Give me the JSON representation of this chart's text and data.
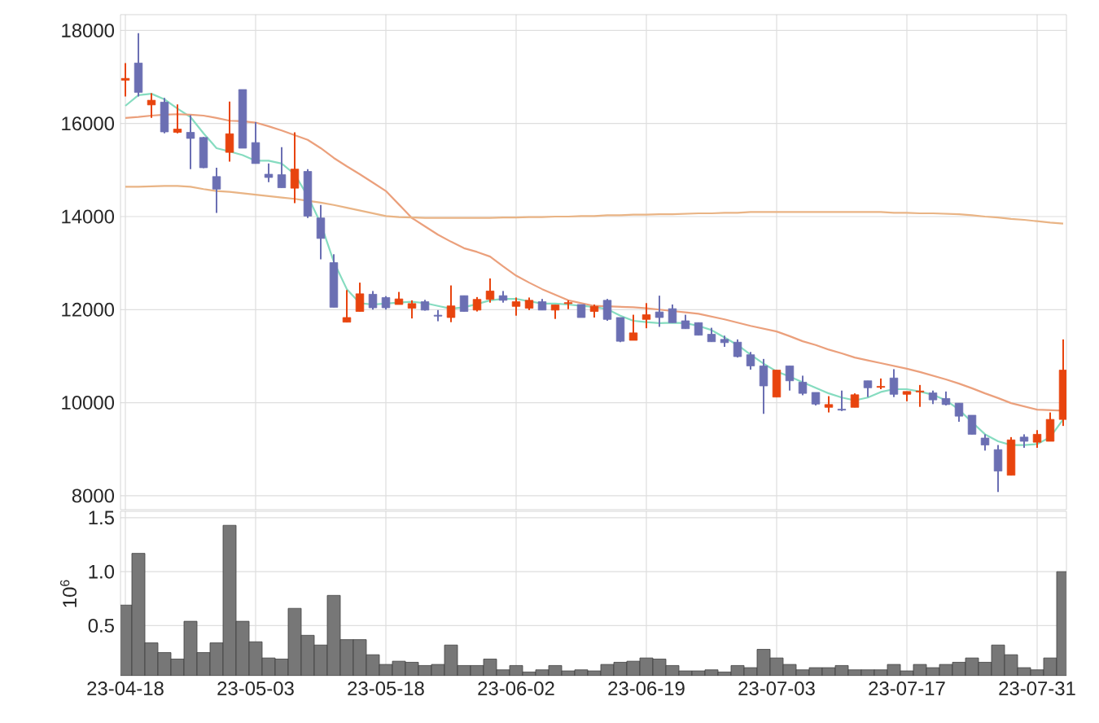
{
  "chart_data": [
    {
      "type": "candlestick",
      "categories": [
        null,
        null,
        null,
        null,
        null,
        null,
        null,
        null,
        null,
        null,
        null,
        null,
        null,
        null,
        null,
        null,
        null,
        null,
        null,
        null,
        null,
        null,
        null,
        null,
        null,
        null,
        null,
        null,
        null,
        null,
        null,
        null,
        null,
        null,
        null,
        null,
        null,
        null,
        null,
        null,
        null,
        null,
        null,
        null,
        null,
        null,
        null,
        null,
        null,
        null,
        null,
        null,
        null,
        null,
        null,
        null,
        null,
        null,
        null,
        null,
        null,
        null,
        null,
        null,
        null,
        null,
        null,
        null,
        null,
        null,
        null,
        null,
        null
      ],
      "ohlc": [
        [
          16930,
          17300,
          16580,
          16970
        ],
        [
          17300,
          17940,
          16580,
          16670
        ],
        [
          16400,
          16650,
          16120,
          16500
        ],
        [
          16460,
          16550,
          15790,
          15820
        ],
        [
          15810,
          16410,
          15790,
          15880
        ],
        [
          15810,
          16180,
          15020,
          15680
        ],
        [
          15700,
          15710,
          15040,
          15050
        ],
        [
          14860,
          15050,
          14080,
          14590
        ],
        [
          15380,
          16470,
          15180,
          15780
        ],
        [
          16730,
          16730,
          15470,
          15470
        ],
        [
          15590,
          16030,
          15140,
          15140
        ],
        [
          14910,
          15140,
          14740,
          14840
        ],
        [
          14900,
          15490,
          14620,
          14620
        ],
        [
          14610,
          15810,
          14290,
          15020
        ],
        [
          14970,
          15020,
          13970,
          14010
        ],
        [
          13970,
          14250,
          13080,
          13530
        ],
        [
          13010,
          13190,
          12050,
          12050
        ],
        [
          11730,
          12420,
          11730,
          11830
        ],
        [
          11960,
          12580,
          11960,
          12340
        ],
        [
          12330,
          12400,
          12000,
          12040
        ],
        [
          12260,
          12290,
          12000,
          12040
        ],
        [
          12110,
          12380,
          12110,
          12230
        ],
        [
          12030,
          12200,
          11810,
          12130
        ],
        [
          12170,
          12210,
          11980,
          11990
        ],
        [
          11880,
          11990,
          11750,
          11860
        ],
        [
          11830,
          12520,
          11730,
          12080
        ],
        [
          12300,
          12300,
          11960,
          11960
        ],
        [
          11990,
          12270,
          11960,
          12220
        ],
        [
          12220,
          12670,
          12150,
          12400
        ],
        [
          12300,
          12400,
          12150,
          12200
        ],
        [
          12070,
          12260,
          11870,
          12170
        ],
        [
          12030,
          12260,
          11990,
          12200
        ],
        [
          12170,
          12230,
          11990,
          11990
        ],
        [
          11990,
          12100,
          11800,
          12100
        ],
        [
          12130,
          12200,
          12010,
          12150
        ],
        [
          12110,
          12110,
          11830,
          11830
        ],
        [
          11960,
          12110,
          11830,
          12070
        ],
        [
          12200,
          12230,
          11760,
          11790
        ],
        [
          11830,
          11830,
          11300,
          11320
        ],
        [
          11340,
          11890,
          11340,
          11500
        ],
        [
          11790,
          12140,
          11600,
          11890
        ],
        [
          11950,
          12300,
          11630,
          11830
        ],
        [
          12020,
          12110,
          11720,
          11720
        ],
        [
          11760,
          11890,
          11590,
          11590
        ],
        [
          11720,
          11720,
          11450,
          11450
        ],
        [
          11470,
          11610,
          11310,
          11310
        ],
        [
          11360,
          11440,
          11200,
          11290
        ],
        [
          11300,
          11360,
          10970,
          10990
        ],
        [
          11030,
          11090,
          10710,
          10790
        ],
        [
          10790,
          10940,
          9760,
          10360
        ],
        [
          10120,
          10700,
          10120,
          10700
        ],
        [
          10790,
          10790,
          10260,
          10470
        ],
        [
          10440,
          10580,
          10160,
          10200
        ],
        [
          10220,
          10220,
          9940,
          9970
        ],
        [
          9900,
          10140,
          9790,
          9960
        ],
        [
          9860,
          10260,
          9820,
          9840
        ],
        [
          9900,
          10200,
          9900,
          10170
        ],
        [
          10470,
          10470,
          10120,
          10320
        ],
        [
          10330,
          10520,
          10290,
          10350
        ],
        [
          10530,
          10720,
          10120,
          10180
        ],
        [
          10180,
          10240,
          10030,
          10240
        ],
        [
          10230,
          10380,
          9910,
          10250
        ],
        [
          10210,
          10260,
          9970,
          10060
        ],
        [
          10090,
          10240,
          9940,
          9960
        ],
        [
          9990,
          9990,
          9590,
          9710
        ],
        [
          9730,
          9730,
          9320,
          9320
        ],
        [
          9240,
          9320,
          8970,
          9090
        ],
        [
          8990,
          9090,
          8080,
          8530
        ],
        [
          8440,
          9260,
          8440,
          9200
        ],
        [
          9260,
          9320,
          9030,
          9170
        ],
        [
          9150,
          9410,
          9030,
          9320
        ],
        [
          9170,
          9790,
          9170,
          9640
        ],
        [
          9640,
          11360,
          9500,
          10700
        ]
      ],
      "colors": [
        "#e8440e",
        "#6b6fb3",
        "#e8440e",
        "#6b6fb3",
        "#e8440e",
        "#6b6fb3",
        "#6b6fb3",
        "#6b6fb3",
        "#e8440e",
        "#6b6fb3",
        "#6b6fb3",
        "#6b6fb3",
        "#6b6fb3",
        "#e8440e",
        "#6b6fb3",
        "#6b6fb3",
        "#6b6fb3",
        "#e8440e",
        "#e8440e",
        "#6b6fb3",
        "#6b6fb3",
        "#e8440e",
        "#e8440e",
        "#6b6fb3",
        "#6b6fb3",
        "#e8440e",
        "#6b6fb3",
        "#e8440e",
        "#e8440e",
        "#6b6fb3",
        "#e8440e",
        "#e8440e",
        "#6b6fb3",
        "#e8440e",
        "#e8440e",
        "#6b6fb3",
        "#e8440e",
        "#6b6fb3",
        "#6b6fb3",
        "#e8440e",
        "#e8440e",
        "#6b6fb3",
        "#6b6fb3",
        "#6b6fb3",
        "#6b6fb3",
        "#6b6fb3",
        "#6b6fb3",
        "#6b6fb3",
        "#6b6fb3",
        "#6b6fb3",
        "#e8440e",
        "#6b6fb3",
        "#6b6fb3",
        "#6b6fb3",
        "#e8440e",
        "#6b6fb3",
        "#e8440e",
        "#6b6fb3",
        "#e8440e",
        "#6b6fb3",
        "#e8440e",
        "#e8440e",
        "#6b6fb3",
        "#6b6fb3",
        "#6b6fb3",
        "#6b6fb3",
        "#6b6fb3",
        "#6b6fb3",
        "#e8440e",
        "#6b6fb3",
        "#e8440e",
        "#e8440e",
        "#e8440e"
      ],
      "series": [
        {
          "type": "line",
          "color": "#86dcc0",
          "values": [
            16380,
            16610,
            16640,
            16520,
            16320,
            16140,
            15790,
            15470,
            15400,
            15320,
            15200,
            15200,
            15140,
            14910,
            14440,
            13850,
            13030,
            12440,
            12140,
            12110,
            12130,
            12150,
            12170,
            12140,
            12080,
            12020,
            12050,
            12120,
            12200,
            12230,
            12230,
            12180,
            12130,
            12130,
            12110,
            12080,
            12060,
            12010,
            11870,
            11760,
            11730,
            11710,
            11720,
            11710,
            11650,
            11560,
            11400,
            11240,
            11030,
            10840,
            10670,
            10560,
            10440,
            10320,
            10200,
            10110,
            10050,
            10110,
            10230,
            10290,
            10290,
            10240,
            10170,
            10050,
            9850,
            9580,
            9320,
            9170,
            9090,
            9090,
            9110,
            9260,
            9640
          ]
        },
        {
          "type": "line",
          "color": "#eba07c",
          "values": [
            16120,
            16140,
            16170,
            16190,
            16200,
            16190,
            16170,
            16120,
            16060,
            16050,
            16020,
            15940,
            15850,
            15750,
            15650,
            15470,
            15260,
            15080,
            14910,
            14730,
            14550,
            14260,
            13970,
            13790,
            13610,
            13460,
            13320,
            13240,
            13140,
            12930,
            12730,
            12580,
            12440,
            12320,
            12200,
            12140,
            12080,
            12070,
            12060,
            12050,
            12030,
            12000,
            11970,
            11940,
            11910,
            11850,
            11790,
            11720,
            11650,
            11590,
            11530,
            11430,
            11320,
            11240,
            11140,
            11060,
            10970,
            10910,
            10850,
            10790,
            10730,
            10660,
            10580,
            10500,
            10410,
            10310,
            10200,
            10100,
            9990,
            9920,
            9850,
            9840,
            9830
          ]
        },
        {
          "type": "line",
          "color": "#e9b485",
          "values": [
            14640,
            14640,
            14650,
            14660,
            14660,
            14640,
            14590,
            14550,
            14530,
            14500,
            14470,
            14440,
            14410,
            14380,
            14340,
            14300,
            14250,
            14190,
            14130,
            14070,
            14010,
            13990,
            13980,
            13970,
            13970,
            13970,
            13970,
            13970,
            13970,
            13980,
            13980,
            13990,
            13990,
            14000,
            14000,
            14010,
            14010,
            14030,
            14030,
            14040,
            14040,
            14050,
            14050,
            14060,
            14070,
            14070,
            14080,
            14080,
            14100,
            14100,
            14100,
            14100,
            14100,
            14100,
            14100,
            14100,
            14100,
            14100,
            14100,
            14080,
            14080,
            14070,
            14070,
            14060,
            14050,
            14030,
            14000,
            13980,
            13950,
            13930,
            13900,
            13870,
            13850
          ]
        }
      ],
      "ylim": [
        7700,
        18340
      ],
      "yticks": [
        8000,
        10000,
        12000,
        14000,
        16000,
        18000
      ],
      "grid": true,
      "tick_labels": "y"
    },
    {
      "type": "bar",
      "categories": [
        "23-04-18",
        null,
        null,
        null,
        null,
        null,
        null,
        null,
        null,
        null,
        "23-05-03",
        null,
        null,
        null,
        null,
        null,
        null,
        null,
        null,
        null,
        "23-05-18",
        null,
        null,
        null,
        null,
        null,
        null,
        null,
        null,
        null,
        "23-06-02",
        null,
        null,
        null,
        null,
        null,
        null,
        null,
        null,
        null,
        "23-06-19",
        null,
        null,
        null,
        null,
        null,
        null,
        null,
        null,
        null,
        "23-07-03",
        null,
        null,
        null,
        null,
        null,
        null,
        null,
        null,
        null,
        "23-07-17",
        null,
        null,
        null,
        null,
        null,
        null,
        null,
        null,
        null,
        "23-07-31",
        null,
        null
      ],
      "values": [
        0.69,
        1.17,
        0.34,
        0.25,
        0.19,
        0.54,
        0.25,
        0.34,
        1.43,
        0.54,
        0.35,
        0.2,
        0.19,
        0.66,
        0.41,
        0.32,
        0.78,
        0.37,
        0.37,
        0.23,
        0.14,
        0.17,
        0.16,
        0.13,
        0.14,
        0.32,
        0.13,
        0.13,
        0.19,
        0.09,
        0.13,
        0.07,
        0.09,
        0.13,
        0.08,
        0.09,
        0.08,
        0.14,
        0.16,
        0.17,
        0.2,
        0.19,
        0.13,
        0.08,
        0.08,
        0.09,
        0.07,
        0.13,
        0.11,
        0.28,
        0.2,
        0.14,
        0.09,
        0.11,
        0.11,
        0.13,
        0.09,
        0.09,
        0.09,
        0.14,
        0.08,
        0.14,
        0.11,
        0.14,
        0.16,
        0.2,
        0.16,
        0.32,
        0.23,
        0.11,
        0.09,
        0.2,
        1.0
      ],
      "color": "#777777",
      "ylabel": "10$^{6}$",
      "ylim": [
        0.035,
        1.56
      ],
      "yticks": [
        {
          "value": 0.5,
          "label": "0.5"
        },
        {
          "value": 1.0,
          "label": "1.0"
        },
        {
          "value": 1.5,
          "label": "1.5"
        }
      ],
      "grid": true
    }
  ]
}
